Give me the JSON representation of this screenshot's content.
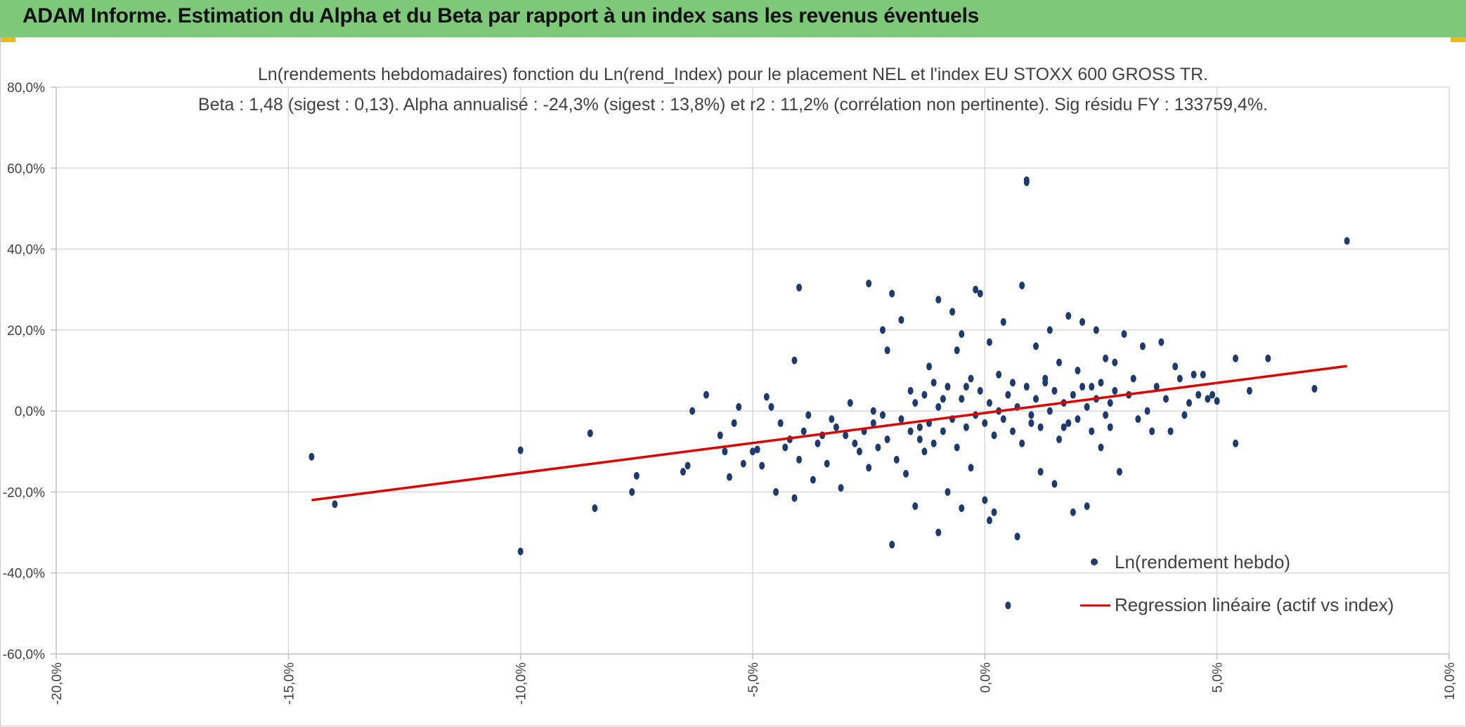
{
  "header": {
    "title": "ADAM Informe. Estimation du Alpha et du Beta par rapport à un index sans les revenus éventuels",
    "background": "#7ec87a",
    "corner_color": "#f2b619"
  },
  "chart_data": {
    "type": "scatter",
    "title": "Ln(rendements hebdomadaires) fonction du Ln(rend_Index) pour le placement NEL et l'index EU STOXX 600 GROSS TR.",
    "subtitle": "Beta : 1,48 (sigest : 0,13). Alpha annualisé : -24,3% (sigest : 13,8%) et r2 : 11,2% (corrélation non pertinente). Sig résidu FY : 133759,4%.",
    "xlim": [
      -0.2,
      0.1
    ],
    "ylim": [
      -0.6,
      0.8
    ],
    "x_ticks": [
      -0.2,
      -0.15,
      -0.1,
      -0.05,
      0.0,
      0.05,
      0.1
    ],
    "x_tick_labels": [
      "-20,0%",
      "-15,0%",
      "-10,0%",
      "-5,0%",
      "0,0%",
      "5,0%",
      "10,0%"
    ],
    "y_ticks": [
      -0.6,
      -0.4,
      -0.2,
      0.0,
      0.2,
      0.4,
      0.6,
      0.8
    ],
    "y_tick_labels": [
      "-60,0%",
      "-40,0%",
      "-20,0%",
      "0,0%",
      "20,0%",
      "40,0%",
      "60,0%",
      "80,0%"
    ],
    "grid": true,
    "legend_position": "bottom-right",
    "series": [
      {
        "name": "Ln(rendement hebdo)",
        "kind": "scatter",
        "color": "#1f3b6e",
        "points": [
          [
            -0.145,
            -0.113
          ],
          [
            -0.14,
            -0.23
          ],
          [
            -0.1,
            -0.097
          ],
          [
            -0.1,
            -0.347
          ],
          [
            -0.085,
            -0.055
          ],
          [
            -0.084,
            -0.24
          ],
          [
            -0.076,
            -0.2
          ],
          [
            -0.075,
            -0.16
          ],
          [
            -0.065,
            -0.15
          ],
          [
            -0.064,
            -0.135
          ],
          [
            -0.063,
            0.0
          ],
          [
            -0.06,
            0.04
          ],
          [
            -0.057,
            -0.06
          ],
          [
            -0.056,
            -0.1
          ],
          [
            -0.055,
            -0.163
          ],
          [
            -0.054,
            -0.03
          ],
          [
            -0.053,
            0.01
          ],
          [
            -0.052,
            -0.13
          ],
          [
            -0.05,
            -0.1
          ],
          [
            -0.049,
            -0.095
          ],
          [
            -0.048,
            -0.135
          ],
          [
            -0.047,
            0.035
          ],
          [
            -0.046,
            0.01
          ],
          [
            -0.045,
            -0.2
          ],
          [
            -0.044,
            -0.03
          ],
          [
            -0.043,
            -0.09
          ],
          [
            -0.042,
            -0.07
          ],
          [
            -0.041,
            -0.215
          ],
          [
            -0.04,
            -0.12
          ],
          [
            -0.039,
            -0.05
          ],
          [
            -0.038,
            -0.01
          ],
          [
            -0.037,
            -0.17
          ],
          [
            -0.036,
            -0.08
          ],
          [
            -0.035,
            -0.06
          ],
          [
            -0.034,
            -0.13
          ],
          [
            -0.033,
            -0.02
          ],
          [
            -0.032,
            -0.04
          ],
          [
            -0.031,
            -0.19
          ],
          [
            -0.03,
            -0.06
          ],
          [
            -0.029,
            0.02
          ],
          [
            -0.028,
            -0.08
          ],
          [
            -0.027,
            -0.1
          ],
          [
            -0.026,
            -0.05
          ],
          [
            -0.025,
            -0.14
          ],
          [
            -0.024,
            -0.03
          ],
          [
            -0.023,
            -0.09
          ],
          [
            -0.022,
            -0.01
          ],
          [
            -0.021,
            -0.07
          ],
          [
            -0.041,
            0.125
          ],
          [
            -0.04,
            0.305
          ],
          [
            -0.025,
            0.315
          ],
          [
            -0.024,
            0.0
          ],
          [
            -0.022,
            0.2
          ],
          [
            -0.021,
            0.15
          ],
          [
            -0.02,
            0.29
          ],
          [
            -0.02,
            -0.33
          ],
          [
            -0.019,
            -0.12
          ],
          [
            -0.018,
            0.225
          ],
          [
            -0.017,
            -0.155
          ],
          [
            -0.016,
            0.05
          ],
          [
            -0.015,
            -0.235
          ],
          [
            -0.014,
            -0.04
          ],
          [
            -0.013,
            -0.1
          ],
          [
            -0.012,
            0.11
          ],
          [
            -0.011,
            0.07
          ],
          [
            -0.01,
            -0.3
          ],
          [
            -0.01,
            0.275
          ],
          [
            -0.009,
            0.03
          ],
          [
            -0.008,
            -0.2
          ],
          [
            -0.007,
            0.245
          ],
          [
            -0.006,
            0.15
          ],
          [
            -0.005,
            -0.24
          ],
          [
            -0.005,
            0.19
          ],
          [
            -0.004,
            0.06
          ],
          [
            -0.003,
            -0.14
          ],
          [
            -0.002,
            0.3
          ],
          [
            -0.001,
            0.29
          ],
          [
            0.0,
            -0.22
          ],
          [
            0.001,
            0.17
          ],
          [
            0.001,
            -0.27
          ],
          [
            0.002,
            -0.25
          ],
          [
            0.003,
            0.0
          ],
          [
            0.004,
            0.22
          ],
          [
            0.005,
            -0.48
          ],
          [
            0.006,
            0.07
          ],
          [
            0.007,
            -0.31
          ],
          [
            0.008,
            0.31
          ],
          [
            0.009,
            0.57
          ],
          [
            0.009,
            0.565
          ],
          [
            0.01,
            -0.03
          ],
          [
            0.011,
            0.16
          ],
          [
            0.012,
            -0.15
          ],
          [
            0.013,
            0.08
          ],
          [
            0.014,
            0.2
          ],
          [
            0.015,
            -0.18
          ],
          [
            0.016,
            0.12
          ],
          [
            0.017,
            -0.04
          ],
          [
            0.018,
            0.235
          ],
          [
            0.019,
            -0.25
          ],
          [
            0.02,
            0.1
          ],
          [
            0.021,
            0.22
          ],
          [
            0.022,
            -0.235
          ],
          [
            0.023,
            0.06
          ],
          [
            0.024,
            0.2
          ],
          [
            0.025,
            -0.09
          ],
          [
            0.026,
            0.13
          ],
          [
            0.027,
            -0.04
          ],
          [
            0.028,
            0.12
          ],
          [
            0.029,
            -0.15
          ],
          [
            0.03,
            0.19
          ],
          [
            0.031,
            0.04
          ],
          [
            0.032,
            0.08
          ],
          [
            0.033,
            -0.02
          ],
          [
            0.034,
            0.16
          ],
          [
            0.035,
            0.0
          ],
          [
            0.036,
            -0.05
          ],
          [
            0.037,
            0.06
          ],
          [
            0.038,
            0.17
          ],
          [
            0.039,
            0.03
          ],
          [
            0.04,
            -0.05
          ],
          [
            0.041,
            0.11
          ],
          [
            0.042,
            0.08
          ],
          [
            0.043,
            -0.01
          ],
          [
            0.044,
            0.02
          ],
          [
            0.045,
            0.09
          ],
          [
            0.046,
            0.04
          ],
          [
            0.047,
            0.09
          ],
          [
            0.048,
            0.03
          ],
          [
            0.049,
            0.04
          ],
          [
            0.05,
            0.025
          ],
          [
            0.054,
            -0.08
          ],
          [
            0.054,
            0.13
          ],
          [
            0.057,
            0.05
          ],
          [
            0.061,
            0.13
          ],
          [
            0.071,
            0.055
          ],
          [
            0.078,
            0.42
          ],
          [
            -0.018,
            -0.02
          ],
          [
            -0.016,
            -0.05
          ],
          [
            -0.015,
            0.02
          ],
          [
            -0.014,
            -0.07
          ],
          [
            -0.013,
            0.04
          ],
          [
            -0.012,
            -0.03
          ],
          [
            -0.011,
            -0.08
          ],
          [
            -0.01,
            0.01
          ],
          [
            -0.009,
            -0.05
          ],
          [
            -0.008,
            0.06
          ],
          [
            -0.007,
            -0.02
          ],
          [
            -0.006,
            -0.09
          ],
          [
            -0.005,
            0.03
          ],
          [
            -0.004,
            -0.04
          ],
          [
            -0.003,
            0.08
          ],
          [
            -0.002,
            -0.01
          ],
          [
            -0.001,
            0.05
          ],
          [
            0.0,
            -0.03
          ],
          [
            0.001,
            0.02
          ],
          [
            0.002,
            -0.06
          ],
          [
            0.003,
            0.09
          ],
          [
            0.004,
            -0.02
          ],
          [
            0.005,
            0.04
          ],
          [
            0.006,
            -0.05
          ],
          [
            0.007,
            0.01
          ],
          [
            0.008,
            -0.08
          ],
          [
            0.009,
            0.06
          ],
          [
            0.01,
            -0.01
          ],
          [
            0.011,
            0.03
          ],
          [
            0.012,
            -0.04
          ],
          [
            0.013,
            0.07
          ],
          [
            0.014,
            0.0
          ],
          [
            0.015,
            0.05
          ],
          [
            0.016,
            -0.07
          ],
          [
            0.017,
            0.02
          ],
          [
            0.018,
            -0.03
          ],
          [
            0.019,
            0.04
          ],
          [
            0.02,
            -0.02
          ],
          [
            0.021,
            0.06
          ],
          [
            0.022,
            0.01
          ],
          [
            0.023,
            -0.05
          ],
          [
            0.024,
            0.03
          ],
          [
            0.025,
            0.07
          ],
          [
            0.026,
            -0.01
          ],
          [
            0.027,
            0.02
          ],
          [
            0.028,
            0.05
          ]
        ]
      },
      {
        "name": "Regression linéaire (actif vs index)",
        "kind": "line",
        "color": "#e00000",
        "points": [
          [
            -0.145,
            -0.22
          ],
          [
            0.078,
            0.111
          ]
        ]
      }
    ]
  }
}
